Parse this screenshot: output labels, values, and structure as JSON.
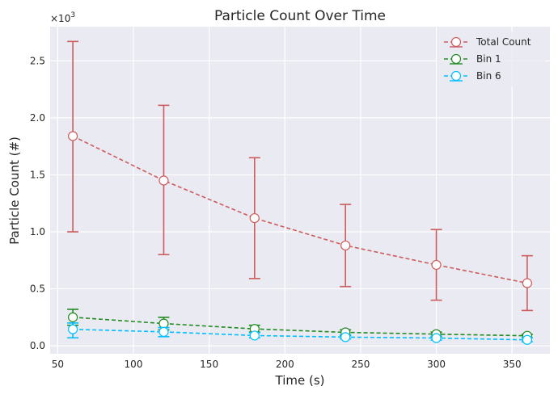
{
  "chart_data": {
    "type": "line",
    "title": "Particle Count Over Time",
    "xlabel": "Time (s)",
    "ylabel": "Particle Count (#)",
    "y_multiplier_base": "×10",
    "y_multiplier_exp": "3",
    "xlim": [
      45,
      375
    ],
    "ylim": [
      -0.07,
      2.8
    ],
    "xticks": [
      50,
      100,
      150,
      200,
      250,
      300,
      350
    ],
    "xtick_labels": [
      "50",
      "100",
      "150",
      "200",
      "250",
      "300",
      "350"
    ],
    "yticks": [
      0.0,
      0.5,
      1.0,
      1.5,
      2.0,
      2.5
    ],
    "ytick_labels": [
      "0.0",
      "0.5",
      "1.0",
      "1.5",
      "2.0",
      "2.5"
    ],
    "grid": true,
    "legend_position": "top-right",
    "x": [
      60,
      120,
      180,
      240,
      300,
      360
    ],
    "series": [
      {
        "name": "Total Count",
        "color": "#cd5c5c",
        "values": [
          1.84,
          1.45,
          1.12,
          0.88,
          0.71,
          0.55
        ],
        "err_low": [
          1.0,
          0.8,
          0.59,
          0.52,
          0.4,
          0.31
        ],
        "err_high": [
          2.67,
          2.11,
          1.65,
          1.24,
          1.02,
          0.79
        ]
      },
      {
        "name": "Bin 1",
        "color": "#228b22",
        "values": [
          0.25,
          0.195,
          0.148,
          0.118,
          0.102,
          0.088
        ],
        "err_low": [
          0.18,
          0.14,
          0.12,
          0.09,
          0.08,
          0.07
        ],
        "err_high": [
          0.32,
          0.25,
          0.18,
          0.14,
          0.12,
          0.1
        ]
      },
      {
        "name": "Bin 6",
        "color": "#00bfff",
        "values": [
          0.145,
          0.122,
          0.09,
          0.076,
          0.068,
          0.052
        ],
        "err_low": [
          0.07,
          0.08,
          0.07,
          0.06,
          0.05,
          0.035
        ],
        "err_high": [
          0.2,
          0.16,
          0.115,
          0.095,
          0.085,
          0.07
        ]
      }
    ]
  }
}
